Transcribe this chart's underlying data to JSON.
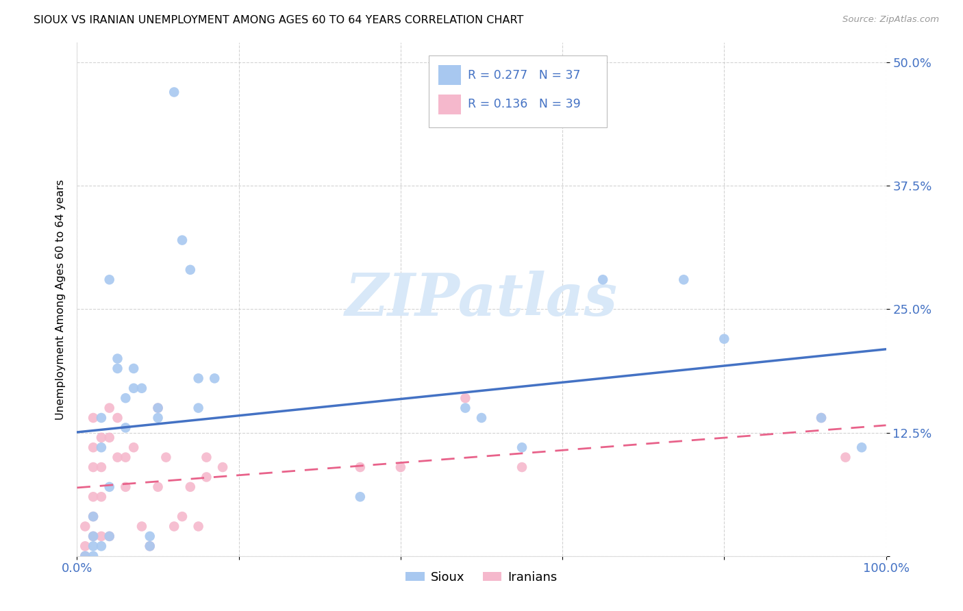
{
  "title": "SIOUX VS IRANIAN UNEMPLOYMENT AMONG AGES 60 TO 64 YEARS CORRELATION CHART",
  "source": "Source: ZipAtlas.com",
  "ylabel": "Unemployment Among Ages 60 to 64 years",
  "xlim": [
    0.0,
    1.0
  ],
  "ylim": [
    0.0,
    0.52
  ],
  "xticks": [
    0.0,
    0.2,
    0.4,
    0.6,
    0.8,
    1.0
  ],
  "xticklabels": [
    "0.0%",
    "",
    "",
    "",
    "",
    "100.0%"
  ],
  "yticks": [
    0.0,
    0.125,
    0.25,
    0.375,
    0.5
  ],
  "yticklabels": [
    "",
    "12.5%",
    "25.0%",
    "37.5%",
    "50.0%"
  ],
  "sioux_color": "#A8C8F0",
  "iranian_color": "#F5B8CC",
  "sioux_line_color": "#4472C4",
  "iranian_line_color": "#E8628A",
  "watermark_color": "#D8E8F8",
  "sioux_x": [
    0.01,
    0.02,
    0.02,
    0.02,
    0.02,
    0.03,
    0.03,
    0.03,
    0.04,
    0.04,
    0.04,
    0.05,
    0.05,
    0.06,
    0.06,
    0.07,
    0.07,
    0.08,
    0.09,
    0.09,
    0.1,
    0.1,
    0.12,
    0.13,
    0.14,
    0.15,
    0.15,
    0.17,
    0.35,
    0.48,
    0.5,
    0.55,
    0.65,
    0.75,
    0.8,
    0.92,
    0.97
  ],
  "sioux_y": [
    0.0,
    0.04,
    0.02,
    0.01,
    0.0,
    0.14,
    0.11,
    0.01,
    0.28,
    0.07,
    0.02,
    0.2,
    0.19,
    0.16,
    0.13,
    0.19,
    0.17,
    0.17,
    0.02,
    0.01,
    0.15,
    0.14,
    0.47,
    0.32,
    0.29,
    0.15,
    0.18,
    0.18,
    0.06,
    0.15,
    0.14,
    0.11,
    0.28,
    0.28,
    0.22,
    0.14,
    0.11
  ],
  "iranian_x": [
    0.01,
    0.01,
    0.01,
    0.02,
    0.02,
    0.02,
    0.02,
    0.02,
    0.02,
    0.03,
    0.03,
    0.03,
    0.03,
    0.04,
    0.04,
    0.04,
    0.05,
    0.05,
    0.06,
    0.06,
    0.07,
    0.08,
    0.09,
    0.1,
    0.1,
    0.11,
    0.12,
    0.13,
    0.14,
    0.15,
    0.16,
    0.18,
    0.35,
    0.4,
    0.48,
    0.55,
    0.92,
    0.95,
    0.16
  ],
  "iranian_y": [
    0.03,
    0.01,
    0.0,
    0.14,
    0.11,
    0.09,
    0.06,
    0.04,
    0.02,
    0.12,
    0.09,
    0.06,
    0.02,
    0.15,
    0.12,
    0.02,
    0.14,
    0.1,
    0.1,
    0.07,
    0.11,
    0.03,
    0.01,
    0.15,
    0.07,
    0.1,
    0.03,
    0.04,
    0.07,
    0.03,
    0.1,
    0.09,
    0.09,
    0.09,
    0.16,
    0.09,
    0.14,
    0.1,
    0.08
  ],
  "bg_color": "#FFFFFF",
  "grid_color": "#CCCCCC",
  "tick_color": "#4472C4",
  "title_fontsize": 11.5,
  "axis_label_fontsize": 11.5,
  "tick_fontsize": 13,
  "marker_size": 110
}
